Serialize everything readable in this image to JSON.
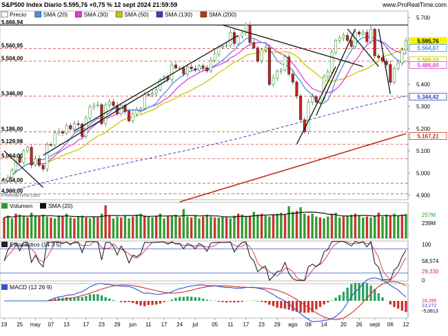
{
  "header": {
    "title": "S&P500 Index Diario 5.595,76 +0,75 % 12 sept 2024 21:59:59",
    "website": "www.ProRealTime.com",
    "watermark": "ProRealTime.com"
  },
  "colors": {
    "price_up": "#2e9e2e",
    "price_down": "#d02020",
    "sma20": "#4a90e2",
    "sma30": "#e040d0",
    "sma50": "#c8c800",
    "sma130": "#3040c0",
    "sma200": "#c03010",
    "trendline": "#111111",
    "hline": "#d03030",
    "volume": "#2e9e2e",
    "stoch_k": "#222222",
    "stoch_d": "#e06060",
    "macd_line": "#3050d0",
    "macd_signal": "#d03030",
    "macd_hist": "#30a060"
  },
  "chart_data": [
    {
      "type": "candlestick",
      "title": "S&P500 Index Diario",
      "legend": [
        "Precio",
        "SMA (20)",
        "SMA (30)",
        "SMA (50)",
        "SMA (130)",
        "SMA (200)"
      ],
      "ylim": [
        4880,
        5730
      ],
      "y_ticks": [
        4900,
        5000,
        5100,
        5200,
        5300,
        5400,
        5500,
        5600,
        5700
      ],
      "x_ticks": [
        "19",
        "25",
        "may",
        "07",
        "13",
        "17",
        "23",
        "29",
        "jun",
        "11",
        "17",
        "24",
        "jul",
        "05",
        "11",
        "17",
        "23",
        "29",
        "ago",
        "08",
        "14",
        "20",
        "26",
        "sept",
        "06",
        "12"
      ],
      "level_lines": [
        5666.94,
        5560.95,
        5504.0,
        5346.0,
        5186.0,
        5129.98,
        5064.0,
        4954.0,
        4906.0
      ],
      "level_labels": [
        "5.666,94",
        "5.560,95",
        "5.504,00",
        "5.346,00",
        "5.186,00",
        "5.129,98",
        "5.064,00",
        "4.954,00",
        "4.906,00"
      ],
      "last_values": [
        {
          "label": "5.595,76",
          "value": 5595.76,
          "series": "Precio"
        },
        {
          "label": "5.564,07",
          "value": 5564.07,
          "series": "SMA (20)"
        },
        {
          "label": "5.509,00",
          "value": 5509.0,
          "series": "SMA (50)"
        },
        {
          "label": "5.486,60",
          "value": 5486.6,
          "series": "SMA (30)"
        },
        {
          "label": "5.344,42",
          "value": 5344.42,
          "series": "SMA (130)"
        },
        {
          "label": "5.167,21",
          "value": 5167.21,
          "series": "SMA (200)"
        }
      ],
      "close": [
        4967,
        4981,
        5011,
        5071,
        5048,
        5100,
        5116,
        5036,
        5064,
        5035,
        5018,
        5128,
        5127,
        5181,
        5187,
        5180,
        5214,
        5199,
        5222,
        5221,
        5165,
        5249,
        5297,
        5303,
        5308,
        5222,
        5307,
        5321,
        5304,
        5268,
        5305,
        5278,
        5235,
        5267,
        5283,
        5291,
        5354,
        5353,
        5360,
        5375,
        5421,
        5433,
        5421,
        5487,
        5473,
        5473,
        5447,
        5478,
        5470,
        5464,
        5483,
        5475,
        5460,
        5509,
        5537,
        5567,
        5572,
        5576,
        5633,
        5584,
        5615,
        5631,
        5667,
        5588,
        5564,
        5505,
        5555,
        5564,
        5399,
        5427,
        5459,
        5464,
        5523,
        5446,
        5410,
        5347,
        5240,
        5186,
        5319,
        5344,
        5320,
        5334,
        5434,
        5455,
        5543,
        5597,
        5609,
        5620,
        5597,
        5571,
        5635,
        5626,
        5634,
        5592,
        5648,
        5528,
        5520,
        5504,
        5489,
        5409,
        5472,
        5496,
        5554,
        5596
      ],
      "open": [
        4960,
        4967,
        4981,
        5011,
        5071,
        5048,
        5100,
        5116,
        5036,
        5064,
        5035,
        5018,
        5128,
        5127,
        5181,
        5187,
        5180,
        5214,
        5199,
        5222,
        5221,
        5165,
        5249,
        5297,
        5303,
        5308,
        5222,
        5307,
        5321,
        5304,
        5268,
        5305,
        5278,
        5235,
        5267,
        5283,
        5291,
        5354,
        5353,
        5360,
        5375,
        5421,
        5433,
        5421,
        5487,
        5473,
        5473,
        5447,
        5478,
        5470,
        5464,
        5483,
        5475,
        5460,
        5509,
        5537,
        5567,
        5572,
        5576,
        5633,
        5584,
        5615,
        5631,
        5667,
        5588,
        5564,
        5505,
        5555,
        5564,
        5399,
        5427,
        5459,
        5464,
        5523,
        5446,
        5410,
        5347,
        5240,
        5186,
        5319,
        5344,
        5320,
        5334,
        5434,
        5455,
        5543,
        5597,
        5609,
        5620,
        5597,
        5571,
        5635,
        5626,
        5634,
        5592,
        5648,
        5528,
        5520,
        5504,
        5489,
        5409,
        5472,
        5496,
        5554
      ]
    },
    {
      "type": "bar",
      "title": "Volumen",
      "legend": [
        "Volumen",
        "SMA (20)"
      ],
      "last_values": [
        {
          "label": "257M",
          "value": 257
        },
        {
          "label": "239M",
          "value": 239
        }
      ],
      "values": [
        2.2,
        2.4,
        2.1,
        2.6,
        2.5,
        2.3,
        2.2,
        2.7,
        2.4,
        2.3,
        2.5,
        2.3,
        2.2,
        2.1,
        2.4,
        2.3,
        2.6,
        2.2,
        2.1,
        2.3,
        2.4,
        2.2,
        2.1,
        2.3,
        2.2,
        2.6,
        3.5,
        2.4,
        2.1,
        2.3,
        2.2,
        2.4,
        2.1,
        2.3,
        2.5,
        2.6,
        2.4,
        2.3,
        2.2,
        2.4,
        2.6,
        2.1,
        2.3,
        2.4,
        2.5,
        2.2,
        3.1,
        2.3,
        2.2,
        2.4,
        2.1,
        2.3,
        2.5,
        2.3,
        2.2,
        2.2,
        2.3,
        2.2,
        2.1,
        2.4,
        2.6,
        2.5,
        2.3,
        2.4,
        2.8,
        2.5,
        2.6,
        2.4,
        2.3,
        2.5,
        2.6,
        2.7,
        2.5,
        3.4,
        2.8,
        2.9,
        3.3,
        2.6,
        2.4,
        2.6,
        2.3,
        2.2,
        2.1,
        2.3,
        2.6,
        2.7,
        2.2,
        2.3,
        2.4,
        2.5,
        2.6,
        2.4,
        2.2,
        2.3,
        2.2,
        2.4,
        2.7,
        2.3,
        2.5,
        2.4,
        2.6,
        2.4,
        2.5,
        2.57
      ]
    },
    {
      "type": "line",
      "title": "Estocástico (14 3 5)",
      "ylim": [
        0,
        100
      ],
      "y_ticks": [
        0,
        100
      ],
      "last_values": [
        {
          "label": "58,574",
          "value": 58.574
        },
        {
          "label": "29,330",
          "value": 29.33
        }
      ]
    },
    {
      "type": "line",
      "title": "MACD (12 26 9)",
      "last_values": [
        {
          "label": "18,285",
          "value": 18.285
        },
        {
          "label": "13,272",
          "value": 13.272
        },
        {
          "label": "-5,0813",
          "value": -5.0813
        }
      ]
    }
  ],
  "legend_items": {
    "price": "Precio",
    "sma20": "SMA (20)",
    "sma30": "SMA (30)",
    "sma50": "SMA (50)",
    "sma130": "SMA (130)",
    "sma200": "SMA (200)",
    "volume": "Volumen",
    "volume_sma": "SMA (20)",
    "stoch": "Estocástico (14 3 5)",
    "macd": "MACD (12 26 9)"
  },
  "price_tick_labels": [
    "5.700",
    "5.600",
    "5.500",
    "5.400",
    "5.300",
    "5.200",
    "5.100",
    "5.000",
    "4.900"
  ],
  "volume_labels": {
    "top": "257M",
    "bottom": "239M"
  },
  "stoch_labels": {
    "top": "100",
    "v1": "58,574",
    "v2": "29,330",
    "bottom": "0"
  },
  "macd_labels": {
    "v1": "18,285",
    "v2": "13,272",
    "v3": "-5,0813"
  },
  "x_labels": [
    "19",
    "25",
    "may",
    "07",
    "13",
    "17",
    "23",
    "29",
    "jun",
    "11",
    "17",
    "24",
    "jul",
    "05",
    "11",
    "17",
    "23",
    "29",
    "ago",
    "08",
    "14",
    "20",
    "26",
    "sept",
    "06",
    "12"
  ]
}
